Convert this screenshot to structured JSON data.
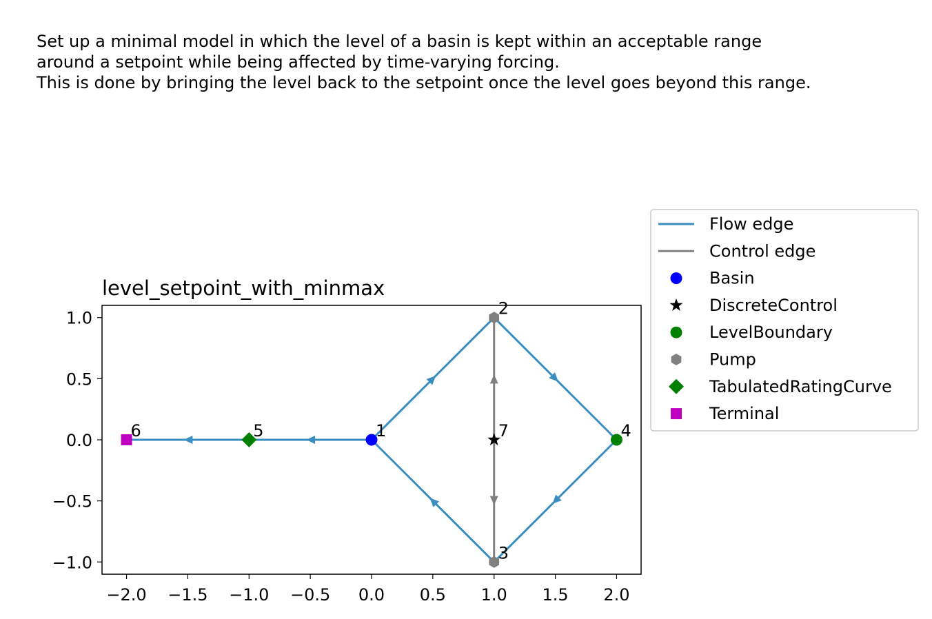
{
  "description": [
    "Set up a minimal model in which the level of a basin is kept within an acceptable range",
    "around a setpoint while being affected by time-varying forcing.",
    "This is done by bringing the level back to the setpoint once the level goes beyond this range."
  ],
  "chart_data": {
    "type": "scatter",
    "title": "level_setpoint_with_minmax",
    "xlabel": "",
    "ylabel": "",
    "xlim": [
      -2.2,
      2.2
    ],
    "ylim": [
      -1.1,
      1.1
    ],
    "xticks": [
      -2.0,
      -1.5,
      -1.0,
      -0.5,
      0.0,
      0.5,
      1.0,
      1.5,
      2.0
    ],
    "yticks": [
      -1.0,
      -0.5,
      0.0,
      0.5,
      1.0
    ],
    "xtick_labels": [
      "−2.0",
      "−1.5",
      "−1.0",
      "−0.5",
      "0.0",
      "0.5",
      "1.0",
      "1.5",
      "2.0"
    ],
    "ytick_labels": [
      "−1.0",
      "−0.5",
      "0.0",
      "0.5",
      "1.0"
    ],
    "grid": false,
    "legend_placement": "outside-right",
    "nodes": [
      {
        "id": "1",
        "type": "Basin",
        "x": 0.0,
        "y": 0.0
      },
      {
        "id": "2",
        "type": "Pump",
        "x": 1.0,
        "y": 1.0
      },
      {
        "id": "3",
        "type": "Pump",
        "x": 1.0,
        "y": -1.0
      },
      {
        "id": "4",
        "type": "LevelBoundary",
        "x": 2.0,
        "y": 0.0
      },
      {
        "id": "5",
        "type": "TabulatedRatingCurve",
        "x": -1.0,
        "y": 0.0
      },
      {
        "id": "6",
        "type": "Terminal",
        "x": -2.0,
        "y": 0.0
      },
      {
        "id": "7",
        "type": "DiscreteControl",
        "x": 1.0,
        "y": 0.0
      }
    ],
    "edges": [
      {
        "from": "1",
        "to": "2",
        "kind": "flow"
      },
      {
        "from": "2",
        "to": "4",
        "kind": "flow"
      },
      {
        "from": "4",
        "to": "3",
        "kind": "flow"
      },
      {
        "from": "3",
        "to": "1",
        "kind": "flow"
      },
      {
        "from": "1",
        "to": "5",
        "kind": "flow"
      },
      {
        "from": "5",
        "to": "6",
        "kind": "flow"
      },
      {
        "from": "7",
        "to": "2",
        "kind": "control"
      },
      {
        "from": "7",
        "to": "3",
        "kind": "control"
      }
    ],
    "legend": [
      {
        "label": "Flow edge",
        "kind": "line",
        "color": "#3a8dc0"
      },
      {
        "label": "Control edge",
        "kind": "line",
        "color": "#808080"
      },
      {
        "label": "Basin",
        "kind": "marker",
        "shape": "circle",
        "color": "#0000ff"
      },
      {
        "label": "DiscreteControl",
        "kind": "marker",
        "shape": "star",
        "color": "#000000"
      },
      {
        "label": "LevelBoundary",
        "kind": "marker",
        "shape": "circle",
        "color": "#008000"
      },
      {
        "label": "Pump",
        "kind": "marker",
        "shape": "hexagon",
        "color": "#808080"
      },
      {
        "label": "TabulatedRatingCurve",
        "kind": "marker",
        "shape": "diamond",
        "color": "#008000"
      },
      {
        "label": "Terminal",
        "kind": "marker",
        "shape": "square",
        "color": "#c000c0"
      }
    ],
    "styles": {
      "Basin": {
        "shape": "circle",
        "color": "#0000ff"
      },
      "DiscreteControl": {
        "shape": "star",
        "color": "#000000"
      },
      "LevelBoundary": {
        "shape": "circle",
        "color": "#008000"
      },
      "Pump": {
        "shape": "hexagon",
        "color": "#808080"
      },
      "TabulatedRatingCurve": {
        "shape": "diamond",
        "color": "#008000"
      },
      "Terminal": {
        "shape": "square",
        "color": "#c000c0"
      }
    }
  }
}
